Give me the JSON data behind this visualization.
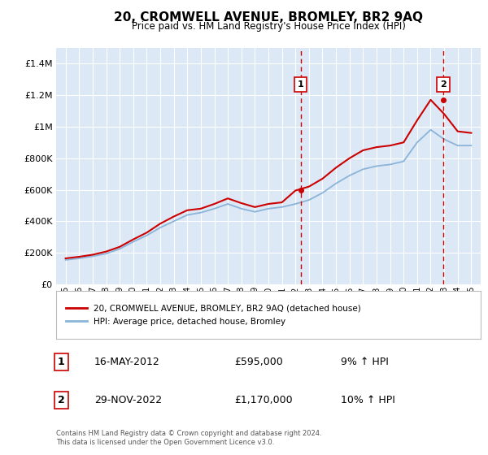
{
  "title": "20, CROMWELL AVENUE, BROMLEY, BR2 9AQ",
  "subtitle": "Price paid vs. HM Land Registry's House Price Index (HPI)",
  "bg_color": "#e8f0f8",
  "plot_bg_color": "#dce8f5",
  "legend_line1": "20, CROMWELL AVENUE, BROMLEY, BR2 9AQ (detached house)",
  "legend_line2": "HPI: Average price, detached house, Bromley",
  "footnote": "Contains HM Land Registry data © Crown copyright and database right 2024.\nThis data is licensed under the Open Government Licence v3.0.",
  "sale1_date": "16-MAY-2012",
  "sale1_price": "£595,000",
  "sale1_hpi": "9% ↑ HPI",
  "sale2_date": "29-NOV-2022",
  "sale2_price": "£1,170,000",
  "sale2_hpi": "10% ↑ HPI",
  "years": [
    1995,
    1996,
    1997,
    1998,
    1999,
    2000,
    2001,
    2002,
    2003,
    2004,
    2005,
    2006,
    2007,
    2008,
    2009,
    2010,
    2011,
    2012,
    2013,
    2014,
    2015,
    2016,
    2017,
    2018,
    2019,
    2020,
    2021,
    2022,
    2023,
    2024,
    2025
  ],
  "hpi_values": [
    155000,
    165000,
    178000,
    195000,
    225000,
    270000,
    310000,
    360000,
    400000,
    440000,
    455000,
    480000,
    510000,
    480000,
    460000,
    480000,
    490000,
    510000,
    535000,
    580000,
    640000,
    690000,
    730000,
    750000,
    760000,
    780000,
    900000,
    980000,
    920000,
    880000,
    880000
  ],
  "price_values": [
    165000,
    175000,
    188000,
    208000,
    238000,
    285000,
    328000,
    385000,
    430000,
    470000,
    480000,
    510000,
    545000,
    515000,
    490000,
    510000,
    520000,
    595000,
    620000,
    670000,
    740000,
    800000,
    850000,
    870000,
    880000,
    900000,
    1040000,
    1170000,
    1080000,
    970000,
    960000
  ],
  "sale1_x": 2012.38,
  "sale2_x": 2022.92,
  "sale1_y": 595000,
  "sale2_y": 1170000,
  "red_color": "#cc0000",
  "blue_color": "#8ab4d8",
  "ylim_min": 0,
  "ylim_max": 1500000,
  "yticks": [
    0,
    200000,
    400000,
    600000,
    800000,
    1000000,
    1200000,
    1400000
  ],
  "xlim_min": 1994.3,
  "xlim_max": 2025.7
}
